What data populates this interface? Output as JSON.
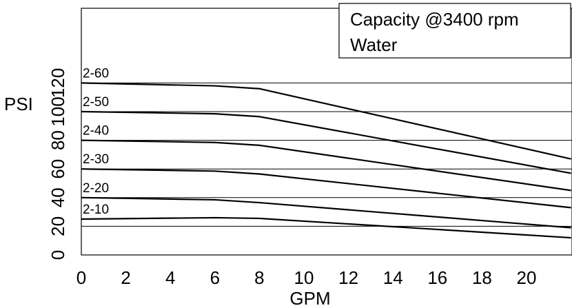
{
  "chart_data": {
    "type": "line",
    "xlabel": "GPM",
    "ylabel": "PSI",
    "x_ticks": [
      "0",
      "2",
      "4",
      "6",
      "8",
      "10",
      "12",
      "14",
      "16",
      "18",
      "20"
    ],
    "y_ticks": [
      "0",
      "20",
      "40",
      "60",
      "80",
      "100",
      "120"
    ],
    "xlim": [
      0,
      22
    ],
    "ylim": [
      0,
      140
    ],
    "grid": "horizontal",
    "legend_placement": "top-right",
    "legend_lines": [
      "Capacity @3400 rpm",
      "Water"
    ],
    "series": [
      {
        "name": "2-60",
        "x": [
          0,
          6,
          8,
          22
        ],
        "y": [
          120,
          118,
          116,
          67
        ]
      },
      {
        "name": "2-50",
        "x": [
          0,
          6,
          8,
          22
        ],
        "y": [
          100,
          98.5,
          96.5,
          57
        ]
      },
      {
        "name": "2-40",
        "x": [
          0,
          6,
          8,
          22
        ],
        "y": [
          80,
          78.5,
          76.5,
          45
        ]
      },
      {
        "name": "2-30",
        "x": [
          0,
          6,
          8,
          22
        ],
        "y": [
          60,
          58.5,
          56.5,
          33
        ]
      },
      {
        "name": "2-20",
        "x": [
          0,
          6,
          8,
          22
        ],
        "y": [
          40,
          38.5,
          36.5,
          19
        ]
      },
      {
        "name": "2-10",
        "x": [
          0,
          6,
          8,
          22
        ],
        "y": [
          25,
          26,
          25.5,
          12
        ]
      }
    ]
  }
}
